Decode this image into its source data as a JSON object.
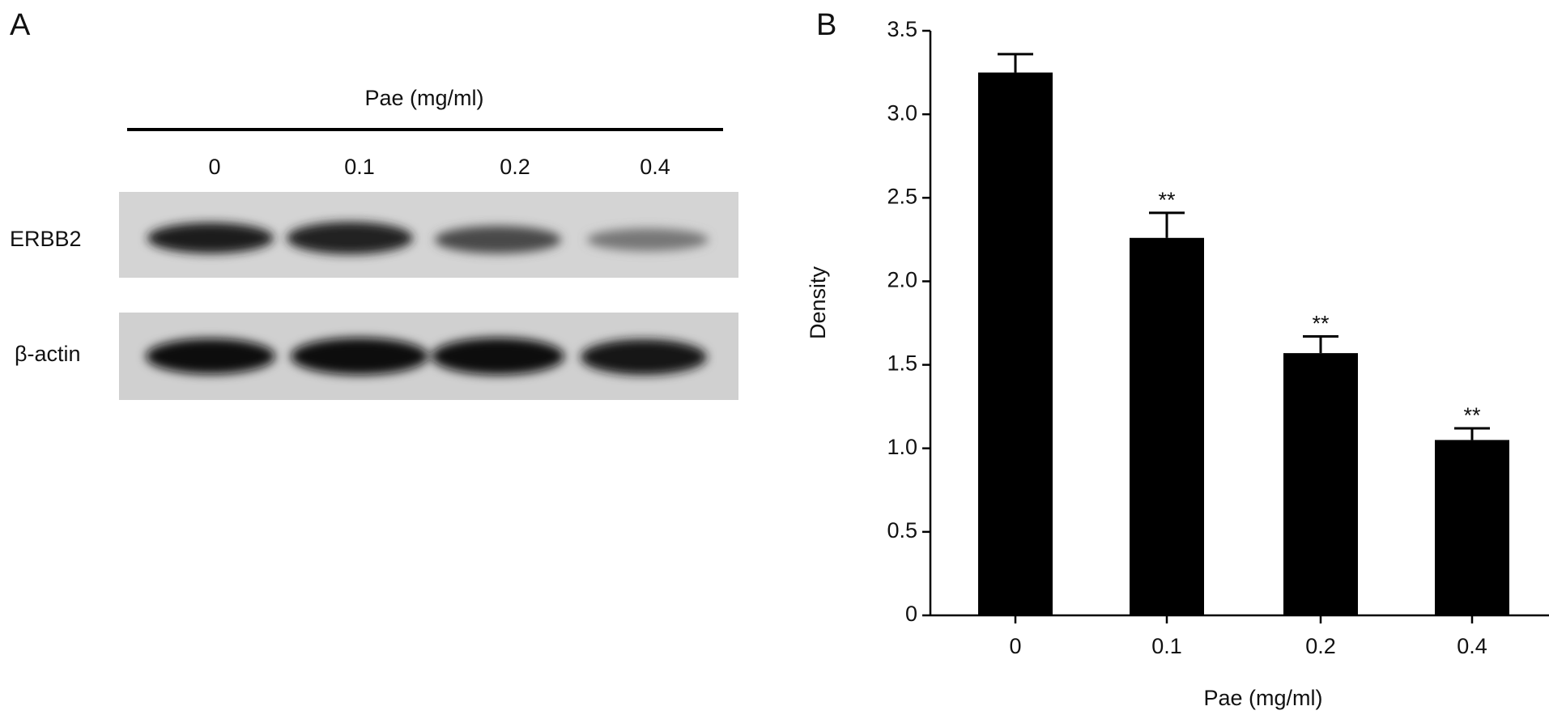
{
  "panel_a": {
    "label": "A",
    "treatment": "Pae (mg/ml)",
    "lanes": [
      "0",
      "0.1",
      "0.2",
      "0.4"
    ],
    "rows": [
      "ERBB2",
      "β-actin"
    ]
  },
  "chart_data": {
    "type": "bar",
    "panel_label": "B",
    "xlabel": "Pae (mg/ml)",
    "ylabel": "Density",
    "categories": [
      "0",
      "0.1",
      "0.2",
      "0.4"
    ],
    "values": [
      3.25,
      2.26,
      1.57,
      1.05
    ],
    "errors": [
      0.11,
      0.15,
      0.1,
      0.07
    ],
    "significance": [
      null,
      "**",
      "**",
      "**"
    ],
    "color": "#000000",
    "ylim": [
      0,
      3.5
    ],
    "yticks": [
      0,
      0.5,
      {
        "value": 1,
        "label": "1.0"
      },
      1.5,
      {
        "value": 2,
        "label": "2.0"
      },
      2.5,
      {
        "value": 3,
        "label": "3.0"
      },
      3.5
    ]
  }
}
